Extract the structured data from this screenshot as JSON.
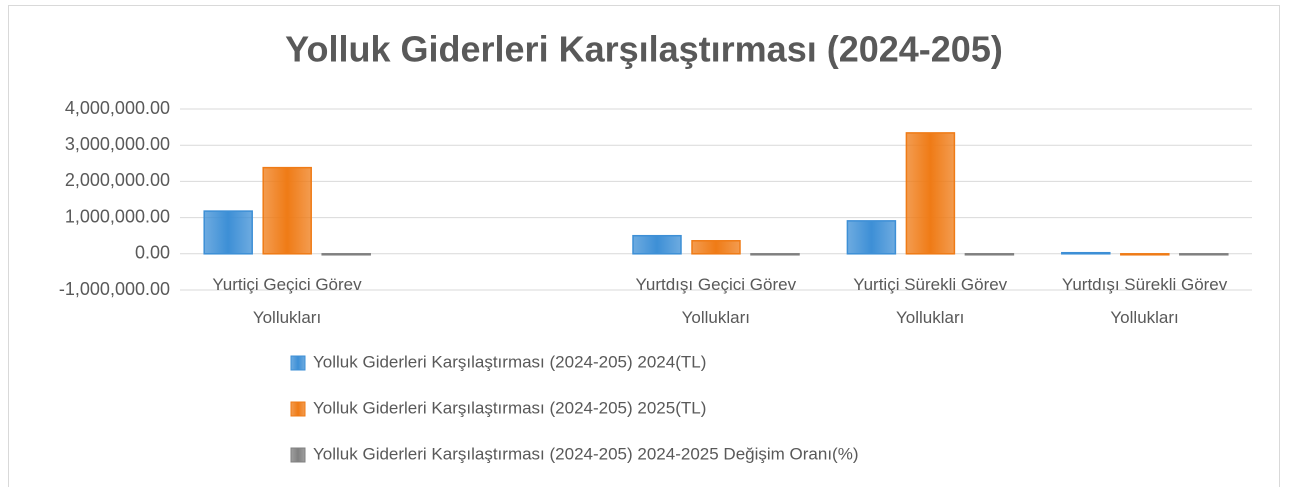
{
  "chart_data": {
    "type": "bar",
    "title": "Yolluk Giderleri Karşılaştırması (2024-205)",
    "categories": [
      "Yurtiçi Geçici Görev Yollukları",
      null,
      "Yurtdışı Geçici Görev Yollukları",
      "Yurtiçi Sürekli Görev Yollukları",
      "Yurtdışı Sürekli Görev Yollukları"
    ],
    "series": [
      {
        "name": "Yolluk Giderleri Karşılaştırması (2024-205) 2024(TL)",
        "color": "#3d8fd6",
        "values": [
          1180000,
          null,
          500000,
          910000,
          30000
        ]
      },
      {
        "name": "Yolluk Giderleri Karşılaştırması (2024-205) 2025(TL)",
        "color": "#ef7b16",
        "values": [
          2380000,
          null,
          360000,
          3340000,
          0
        ]
      },
      {
        "name": "Yolluk Giderleri Karşılaştırması (2024-205) 2024-2025 Değişim Oranı(%)",
        "color": "#808080",
        "values": [
          100,
          null,
          -28,
          267,
          -100
        ]
      }
    ],
    "ylim": [
      -1000000,
      4000000
    ],
    "yticks": [
      {
        "value": -1000000,
        "label": "-1,000,000.00"
      },
      {
        "value": 0,
        "label": "0.00"
      },
      {
        "value": 1000000,
        "label": "1,000,000.00"
      },
      {
        "value": 2000000,
        "label": "2,000,000.00"
      },
      {
        "value": 3000000,
        "label": "3,000,000.00"
      },
      {
        "value": 4000000,
        "label": "4,000,000.00"
      }
    ],
    "grid": true,
    "legend": "bottom"
  }
}
